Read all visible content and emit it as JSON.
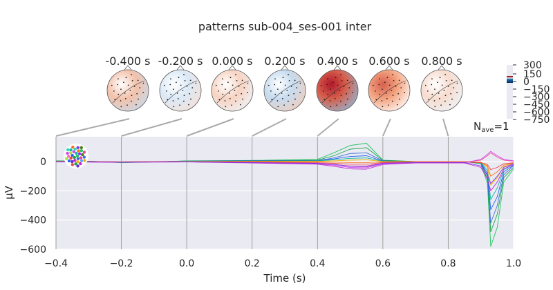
{
  "chart_data": {
    "type": "line",
    "title": "patterns sub-004_ses-001 inter",
    "xlabel": "Time (s)",
    "ylabel": "µV",
    "nave_label": "N",
    "nave_sub": "ave",
    "nave_value": "=1",
    "xlim": [
      -0.4,
      1.0
    ],
    "ylim": [
      -600,
      170
    ],
    "xticks": [
      -0.4,
      -0.2,
      0.0,
      0.2,
      0.4,
      0.6,
      0.8,
      1.0
    ],
    "xtick_labels": [
      "−0.4",
      "−0.2",
      "0.0",
      "0.2",
      "0.4",
      "0.6",
      "0.8",
      "1.0"
    ],
    "yticks": [
      0,
      -200,
      -400,
      -600
    ],
    "ytick_labels": [
      "0",
      "−200",
      "−400",
      "−600"
    ],
    "grid": true,
    "topomap_times": [
      -0.4,
      -0.2,
      0.0,
      0.2,
      0.4,
      0.6,
      0.8
    ],
    "topomap_labels": [
      "-0.400 s",
      "-0.200 s",
      "0.000 s",
      "0.200 s",
      "0.400 s",
      "0.600 s",
      "0.800 s"
    ],
    "colorbar_ticks": [
      "300",
      "150",
      "0",
      "−150",
      "−300",
      "−450",
      "−600",
      "−750"
    ],
    "series": [
      {
        "color": "#22c55e",
        "values": [
          [
            -0.4,
            5
          ],
          [
            -0.3,
            3
          ],
          [
            -0.2,
            -8
          ],
          [
            -0.1,
            -3
          ],
          [
            0.0,
            5
          ],
          [
            0.2,
            8
          ],
          [
            0.4,
            15
          ],
          [
            0.45,
            60
          ],
          [
            0.5,
            110
          ],
          [
            0.55,
            125
          ],
          [
            0.6,
            10
          ],
          [
            0.7,
            0
          ],
          [
            0.85,
            0
          ],
          [
            0.9,
            -15
          ],
          [
            0.92,
            -150
          ],
          [
            0.93,
            -580
          ],
          [
            0.95,
            -450
          ],
          [
            0.97,
            -140
          ],
          [
            1.0,
            -50
          ]
        ]
      },
      {
        "color": "#16a34a",
        "values": [
          [
            -0.4,
            5
          ],
          [
            -0.3,
            2
          ],
          [
            -0.2,
            -5
          ],
          [
            -0.1,
            -2
          ],
          [
            0.0,
            4
          ],
          [
            0.2,
            6
          ],
          [
            0.4,
            10
          ],
          [
            0.45,
            40
          ],
          [
            0.5,
            85
          ],
          [
            0.55,
            95
          ],
          [
            0.6,
            8
          ],
          [
            0.7,
            0
          ],
          [
            0.85,
            0
          ],
          [
            0.9,
            -10
          ],
          [
            0.92,
            -120
          ],
          [
            0.93,
            -480
          ],
          [
            0.95,
            -360
          ],
          [
            0.97,
            -110
          ],
          [
            1.0,
            -40
          ]
        ]
      },
      {
        "color": "#3b6fd6",
        "values": [
          [
            -0.4,
            3
          ],
          [
            -0.3,
            2
          ],
          [
            -0.2,
            -3
          ],
          [
            -0.1,
            -1
          ],
          [
            0.0,
            3
          ],
          [
            0.2,
            5
          ],
          [
            0.4,
            6
          ],
          [
            0.45,
            25
          ],
          [
            0.5,
            55
          ],
          [
            0.55,
            60
          ],
          [
            0.6,
            5
          ],
          [
            0.7,
            -2
          ],
          [
            0.85,
            -2
          ],
          [
            0.9,
            -10
          ],
          [
            0.92,
            -100
          ],
          [
            0.93,
            -420
          ],
          [
            0.95,
            -300
          ],
          [
            0.97,
            -90
          ],
          [
            1.0,
            -30
          ]
        ]
      },
      {
        "color": "#2563eb",
        "values": [
          [
            -0.4,
            2
          ],
          [
            -0.3,
            1
          ],
          [
            -0.2,
            -2
          ],
          [
            -0.1,
            0
          ],
          [
            0.0,
            2
          ],
          [
            0.2,
            4
          ],
          [
            0.4,
            5
          ],
          [
            0.45,
            18
          ],
          [
            0.5,
            35
          ],
          [
            0.55,
            40
          ],
          [
            0.6,
            3
          ],
          [
            0.7,
            -2
          ],
          [
            0.85,
            -2
          ],
          [
            0.9,
            -8
          ],
          [
            0.92,
            -80
          ],
          [
            0.93,
            -330
          ],
          [
            0.95,
            -240
          ],
          [
            0.97,
            -70
          ],
          [
            1.0,
            -25
          ]
        ]
      },
      {
        "color": "#14b8a6",
        "values": [
          [
            -0.4,
            2
          ],
          [
            -0.3,
            1
          ],
          [
            -0.2,
            -4
          ],
          [
            -0.1,
            -1
          ],
          [
            0.0,
            2
          ],
          [
            0.2,
            3
          ],
          [
            0.4,
            4
          ],
          [
            0.45,
            12
          ],
          [
            0.5,
            22
          ],
          [
            0.55,
            25
          ],
          [
            0.6,
            2
          ],
          [
            0.7,
            -1
          ],
          [
            0.85,
            -1
          ],
          [
            0.9,
            -6
          ],
          [
            0.92,
            -60
          ],
          [
            0.93,
            -260
          ],
          [
            0.95,
            -180
          ],
          [
            0.97,
            -55
          ],
          [
            1.0,
            -20
          ]
        ]
      },
      {
        "color": "#eab308",
        "values": [
          [
            -0.4,
            1
          ],
          [
            -0.3,
            0
          ],
          [
            -0.2,
            -2
          ],
          [
            -0.1,
            0
          ],
          [
            0.0,
            1
          ],
          [
            0.2,
            2
          ],
          [
            0.4,
            2
          ],
          [
            0.45,
            5
          ],
          [
            0.5,
            10
          ],
          [
            0.55,
            12
          ],
          [
            0.6,
            1
          ],
          [
            0.7,
            0
          ],
          [
            0.85,
            0
          ],
          [
            0.9,
            -5
          ],
          [
            0.92,
            -40
          ],
          [
            0.93,
            -160
          ],
          [
            0.95,
            -110
          ],
          [
            0.97,
            -35
          ],
          [
            1.0,
            -10
          ]
        ]
      },
      {
        "color": "#f97316",
        "values": [
          [
            -0.4,
            1
          ],
          [
            -0.3,
            0
          ],
          [
            -0.2,
            -1
          ],
          [
            -0.1,
            0
          ],
          [
            0.0,
            0
          ],
          [
            0.2,
            0
          ],
          [
            0.4,
            -2
          ],
          [
            0.45,
            -4
          ],
          [
            0.5,
            -6
          ],
          [
            0.55,
            -6
          ],
          [
            0.6,
            -2
          ],
          [
            0.7,
            -1
          ],
          [
            0.85,
            -1
          ],
          [
            0.9,
            -5
          ],
          [
            0.92,
            -30
          ],
          [
            0.93,
            -100
          ],
          [
            0.95,
            -70
          ],
          [
            0.97,
            -25
          ],
          [
            1.0,
            -10
          ]
        ]
      },
      {
        "color": "#ef4444",
        "values": [
          [
            -0.4,
            0
          ],
          [
            -0.3,
            -1
          ],
          [
            -0.2,
            -2
          ],
          [
            -0.1,
            -1
          ],
          [
            0.0,
            0
          ],
          [
            0.2,
            -3
          ],
          [
            0.4,
            -8
          ],
          [
            0.45,
            -12
          ],
          [
            0.5,
            -18
          ],
          [
            0.55,
            -18
          ],
          [
            0.6,
            -6
          ],
          [
            0.7,
            -3
          ],
          [
            0.85,
            -3
          ],
          [
            0.9,
            -8
          ],
          [
            0.92,
            -20
          ],
          [
            0.93,
            -55
          ],
          [
            0.95,
            -40
          ],
          [
            0.97,
            -15
          ],
          [
            1.0,
            -8
          ]
        ]
      },
      {
        "color": "#ec4899",
        "values": [
          [
            -0.4,
            -1
          ],
          [
            -0.3,
            -2
          ],
          [
            -0.2,
            -3
          ],
          [
            -0.1,
            -2
          ],
          [
            0.0,
            -1
          ],
          [
            0.2,
            -6
          ],
          [
            0.4,
            -12
          ],
          [
            0.45,
            -20
          ],
          [
            0.5,
            -30
          ],
          [
            0.55,
            -30
          ],
          [
            0.6,
            -10
          ],
          [
            0.7,
            -5
          ],
          [
            0.85,
            -5
          ],
          [
            0.9,
            10
          ],
          [
            0.92,
            40
          ],
          [
            0.93,
            60
          ],
          [
            0.95,
            30
          ],
          [
            0.97,
            10
          ],
          [
            1.0,
            2
          ]
        ]
      },
      {
        "color": "#d946ef",
        "values": [
          [
            -0.4,
            -2
          ],
          [
            -0.3,
            -3
          ],
          [
            -0.2,
            -4
          ],
          [
            -0.1,
            -3
          ],
          [
            0.0,
            -2
          ],
          [
            0.2,
            -8
          ],
          [
            0.4,
            -15
          ],
          [
            0.45,
            -25
          ],
          [
            0.5,
            -40
          ],
          [
            0.55,
            -42
          ],
          [
            0.6,
            -15
          ],
          [
            0.7,
            -8
          ],
          [
            0.85,
            -8
          ],
          [
            0.9,
            15
          ],
          [
            0.92,
            50
          ],
          [
            0.93,
            70
          ],
          [
            0.95,
            40
          ],
          [
            0.97,
            15
          ],
          [
            1.0,
            5
          ]
        ]
      },
      {
        "color": "#c026d3",
        "values": [
          [
            -0.4,
            -3
          ],
          [
            -0.3,
            -4
          ],
          [
            -0.2,
            -5
          ],
          [
            -0.1,
            -4
          ],
          [
            0.0,
            -3
          ],
          [
            0.2,
            -10
          ],
          [
            0.4,
            -18
          ],
          [
            0.45,
            -32
          ],
          [
            0.5,
            -50
          ],
          [
            0.55,
            -52
          ],
          [
            0.6,
            -20
          ],
          [
            0.7,
            -10
          ],
          [
            0.85,
            -10
          ],
          [
            0.9,
            -40
          ],
          [
            0.92,
            -120
          ],
          [
            0.93,
            -200
          ],
          [
            0.95,
            -140
          ],
          [
            0.97,
            -50
          ],
          [
            1.0,
            -20
          ]
        ]
      },
      {
        "color": "#7c3aed",
        "values": [
          [
            -0.4,
            -2
          ],
          [
            -0.3,
            -3
          ],
          [
            -0.2,
            -4
          ],
          [
            -0.1,
            -3
          ],
          [
            0.0,
            -2
          ],
          [
            0.2,
            -7
          ],
          [
            0.4,
            -12
          ],
          [
            0.45,
            -20
          ],
          [
            0.5,
            -32
          ],
          [
            0.55,
            -35
          ],
          [
            0.6,
            -12
          ],
          [
            0.7,
            -6
          ],
          [
            0.85,
            -6
          ],
          [
            0.9,
            -30
          ],
          [
            0.92,
            -90
          ],
          [
            0.93,
            -150
          ],
          [
            0.95,
            -100
          ],
          [
            0.97,
            -40
          ],
          [
            1.0,
            -15
          ]
        ]
      }
    ]
  }
}
